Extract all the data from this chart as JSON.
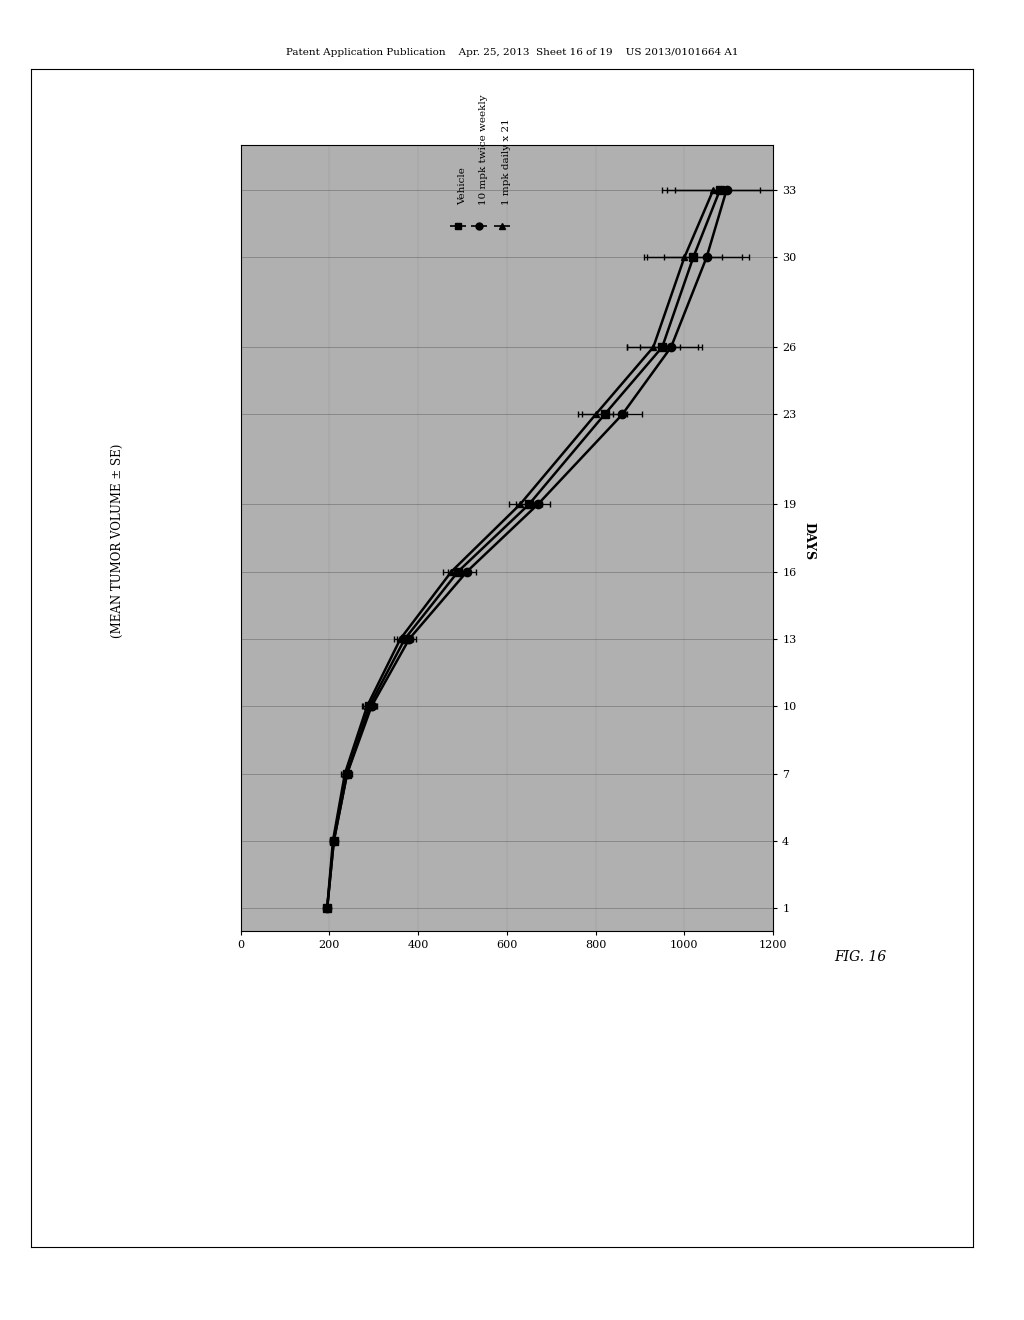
{
  "page_bg": "#ffffff",
  "plot_bg_color": "#b0b0b0",
  "outer_box_color": "#000000",
  "header_text": "Patent Application Publication    Apr. 25, 2013  Sheet 16 of 19    US 2013/0101664 A1",
  "fig_label": "FIG. 16",
  "ylabel": "(MEAN TUMOR VOLUME ± SE)",
  "xlabel": "DAYS",
  "volume_ticks": [
    0,
    200,
    400,
    600,
    800,
    1000,
    1200
  ],
  "days_ticks": [
    1,
    4,
    7,
    10,
    13,
    16,
    19,
    23,
    26,
    30,
    33
  ],
  "volume_lim": [
    0,
    1200
  ],
  "days_lim": [
    0,
    35
  ],
  "series": [
    {
      "label": "Vehicle",
      "marker": "s",
      "days": [
        1,
        4,
        7,
        10,
        13,
        16,
        19,
        23,
        26,
        30,
        33
      ],
      "values": [
        195,
        210,
        240,
        290,
        370,
        490,
        650,
        820,
        950,
        1020,
        1080
      ],
      "xerr": [
        3,
        8,
        10,
        15,
        18,
        22,
        30,
        50,
        80,
        110,
        130
      ]
    },
    {
      "label": "10 mpk twice weekly",
      "marker": "o",
      "days": [
        1,
        4,
        7,
        10,
        13,
        16,
        19,
        23,
        26,
        30,
        33
      ],
      "values": [
        195,
        210,
        240,
        295,
        380,
        510,
        670,
        860,
        970,
        1050,
        1095
      ],
      "xerr": [
        3,
        7,
        9,
        13,
        16,
        20,
        28,
        45,
        70,
        95,
        115
      ]
    },
    {
      "label": "1 mpk daily x 21",
      "marker": "^",
      "days": [
        1,
        4,
        7,
        10,
        13,
        16,
        19,
        23,
        26,
        30,
        33
      ],
      "values": [
        195,
        208,
        235,
        285,
        360,
        475,
        630,
        800,
        930,
        1000,
        1065
      ],
      "xerr": [
        3,
        6,
        8,
        12,
        14,
        18,
        25,
        40,
        60,
        85,
        105
      ]
    }
  ],
  "legend_entries": [
    {
      "label": "Vehicle",
      "marker": "s"
    },
    {
      "label": "10 mpk twice weekly",
      "marker": "o"
    },
    {
      "label": "1 mpk daily x 21",
      "marker": "^"
    }
  ],
  "gridline_color": "#555555",
  "gridline_alpha": 0.6
}
